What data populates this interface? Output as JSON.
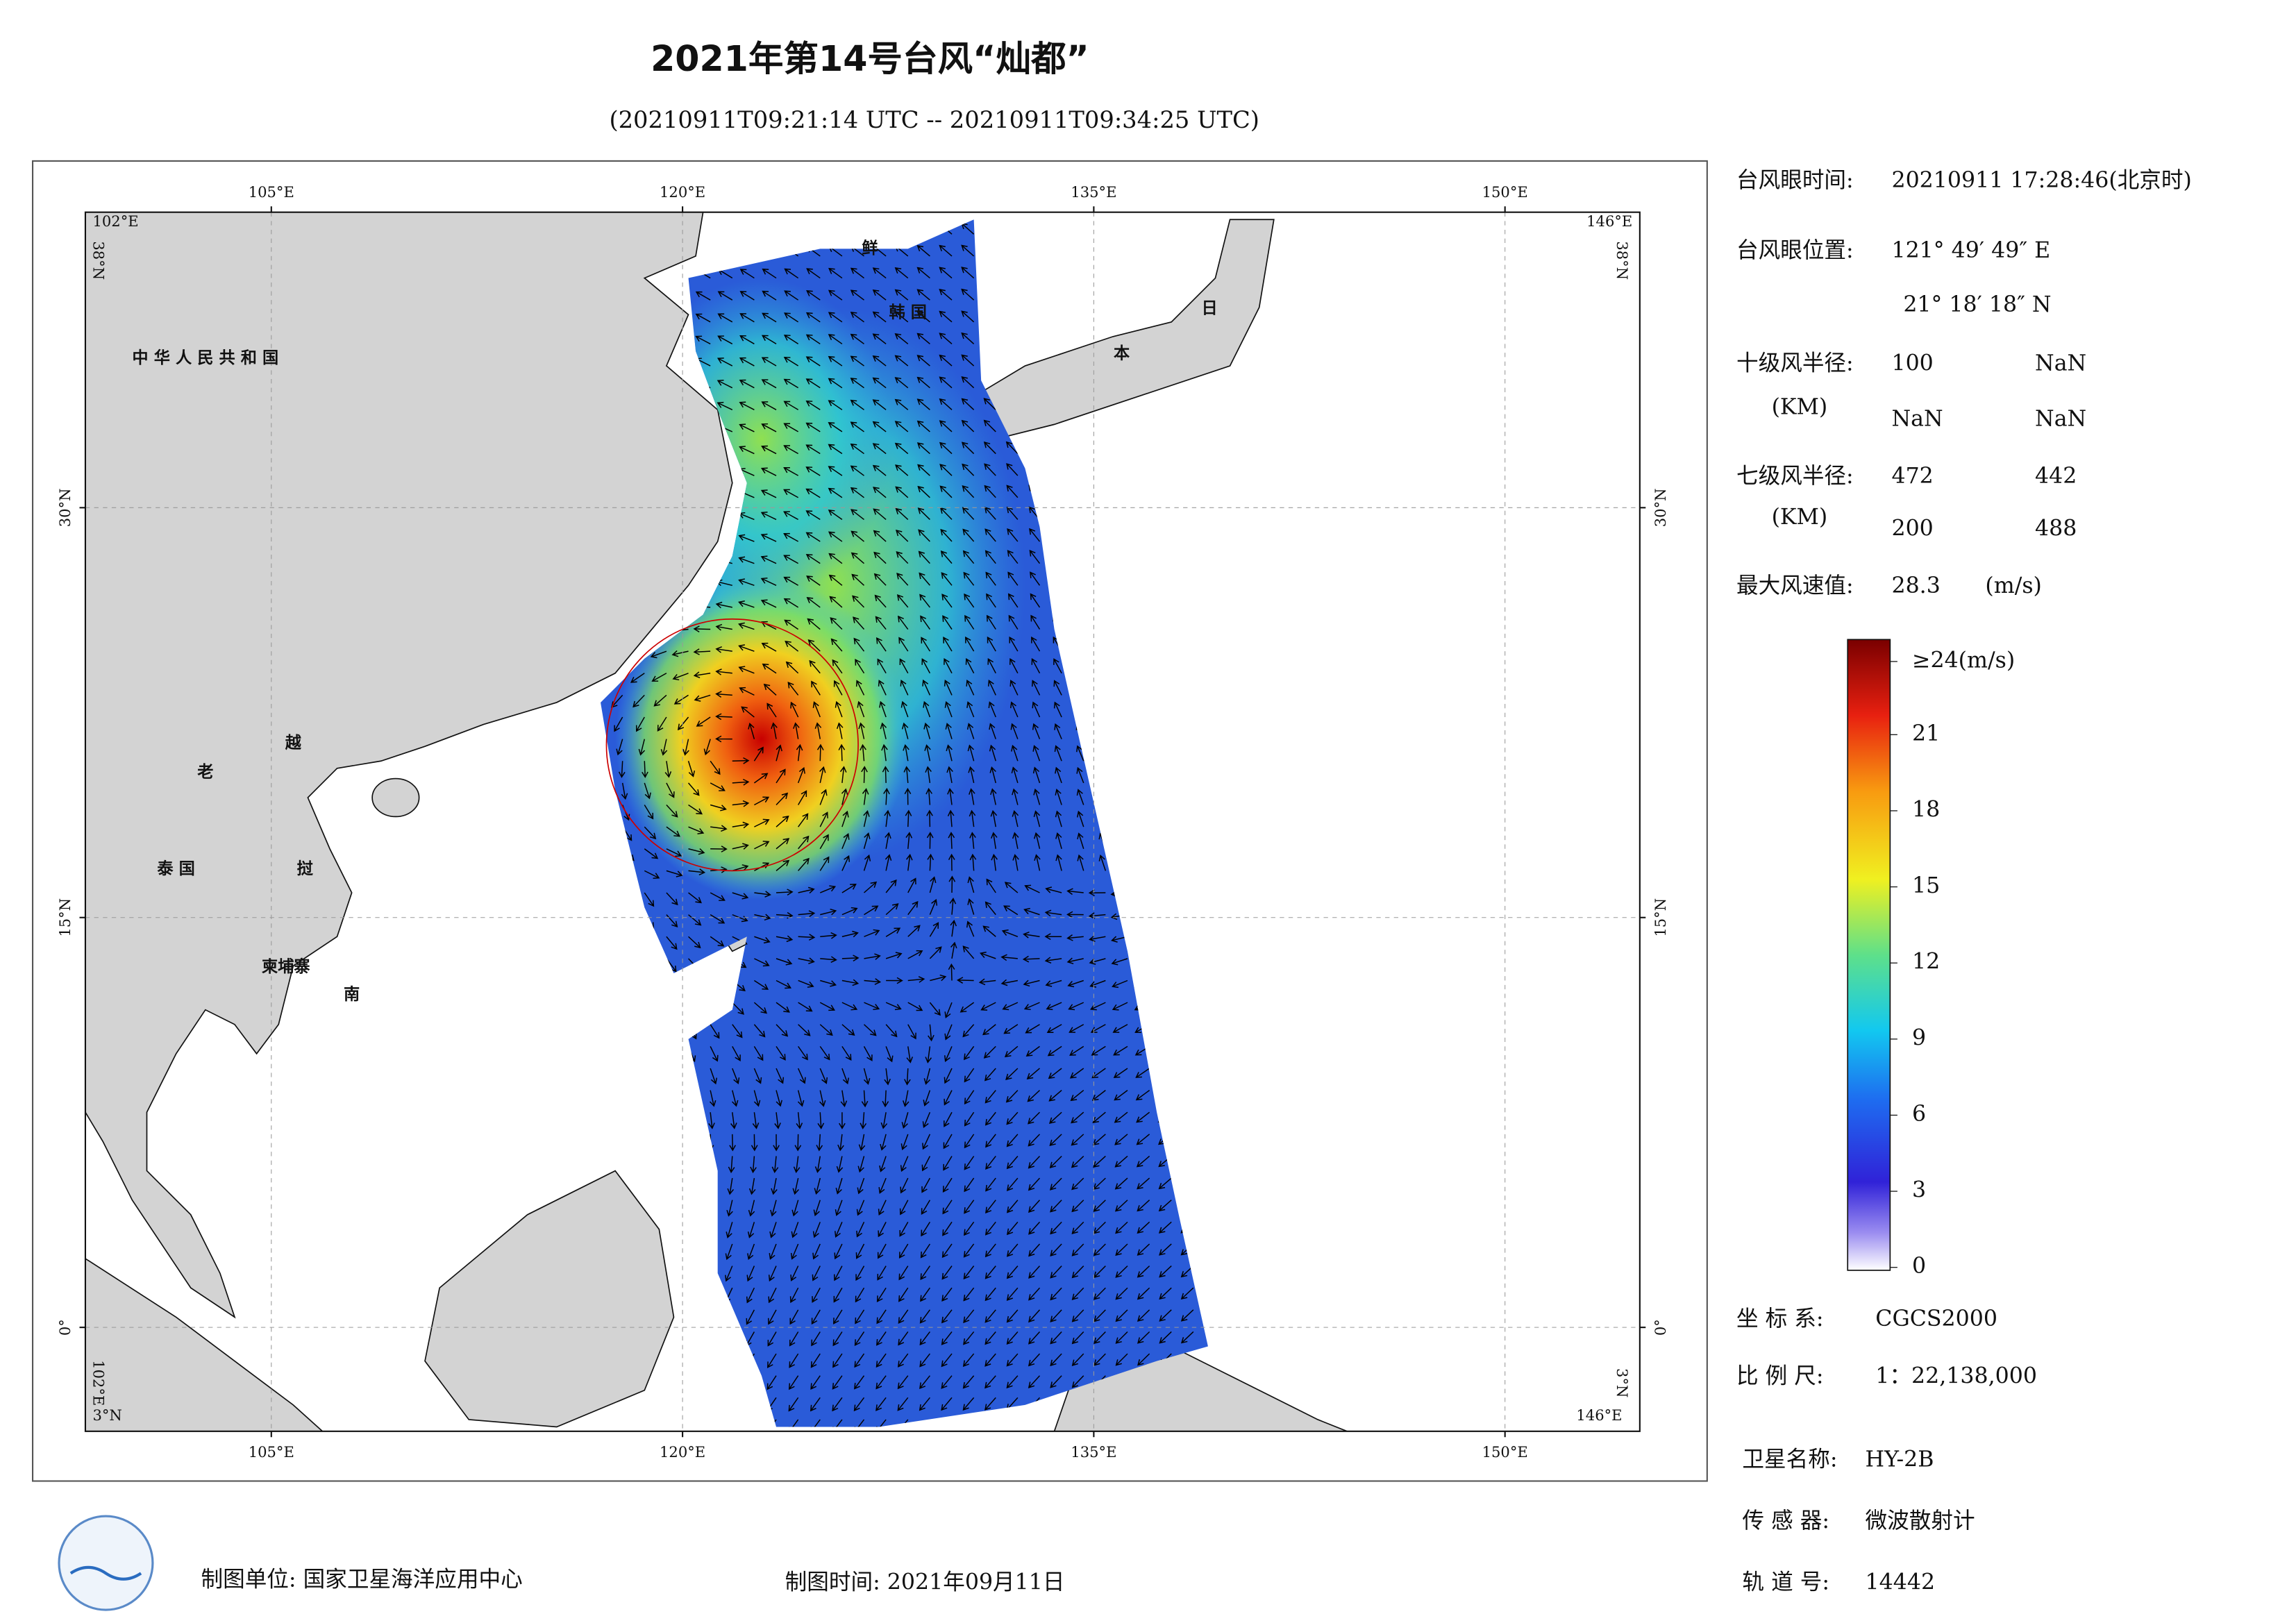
{
  "title": "2021年第14号台风“灿都”",
  "subtitle": "(20210911T09:21:14 UTC -- 20210911T09:34:25 UTC)",
  "map": {
    "lon_ticks": [
      {
        "value": 105,
        "label": "105°E"
      },
      {
        "value": 120,
        "label": "120°E"
      },
      {
        "value": 135,
        "label": "135°E"
      },
      {
        "value": 150,
        "label": "150°E"
      }
    ],
    "lat_ticks": [
      {
        "value": 30,
        "label": "30°N"
      },
      {
        "value": 15,
        "label": "15°N"
      },
      {
        "value": 0,
        "label": "0°"
      }
    ],
    "corner_labels": {
      "top_left_lon": "102°E",
      "top_left_lat": "38°N",
      "top_right_lon": "146°E",
      "top_right_lat": "38°N",
      "bottom_left_lon": "102°E",
      "bottom_left_lat": "3°N",
      "bottom_right_lon": "146°E",
      "bottom_right_lat": "3°N"
    },
    "place_labels": [
      "中 华 人 民 共 和 国",
      "老",
      "越",
      "泰 国",
      "挝",
      "柬埔寨",
      "南",
      "鲜",
      "韩 国",
      "日",
      "本"
    ]
  },
  "info": {
    "eye_time": {
      "label": "台风眼时间:",
      "value": "20210911 17:28:46(北京时)"
    },
    "eye_position": {
      "label": "台风眼位置:",
      "lon": "121° 49′ 49″ E",
      "lat": "21° 18′ 18″ N"
    },
    "r10": {
      "label": "十级风半径:",
      "unit": "(KM)",
      "values": [
        100,
        "NaN",
        "NaN",
        "NaN"
      ]
    },
    "r7": {
      "label": "七级风半径:",
      "unit": "(KM)",
      "values": [
        472,
        442,
        200,
        488
      ]
    },
    "max_wind": {
      "label": "最大风速值:",
      "value": 28.3,
      "unit": "(m/s)"
    },
    "colorbar_ticks": [
      {
        "value": 24,
        "label": "≥24(m/s)"
      },
      21,
      18,
      15,
      12,
      9,
      6,
      3,
      0
    ],
    "crs": {
      "label": "坐 标 系:",
      "value": "CGCS2000"
    },
    "scale": {
      "label": "比 例 尺:",
      "value": "1：22,138,000"
    },
    "satellite": {
      "label": "卫星名称:",
      "value": "HY-2B"
    },
    "sensor": {
      "label": "传 感 器:",
      "value": "微波散射计"
    },
    "orbit": {
      "label": "轨 道 号:",
      "value": 14442
    }
  },
  "footer": {
    "producer": "制图单位: 国家卫星海洋应用中心",
    "date": "制图时间: 2021年09月11日"
  }
}
